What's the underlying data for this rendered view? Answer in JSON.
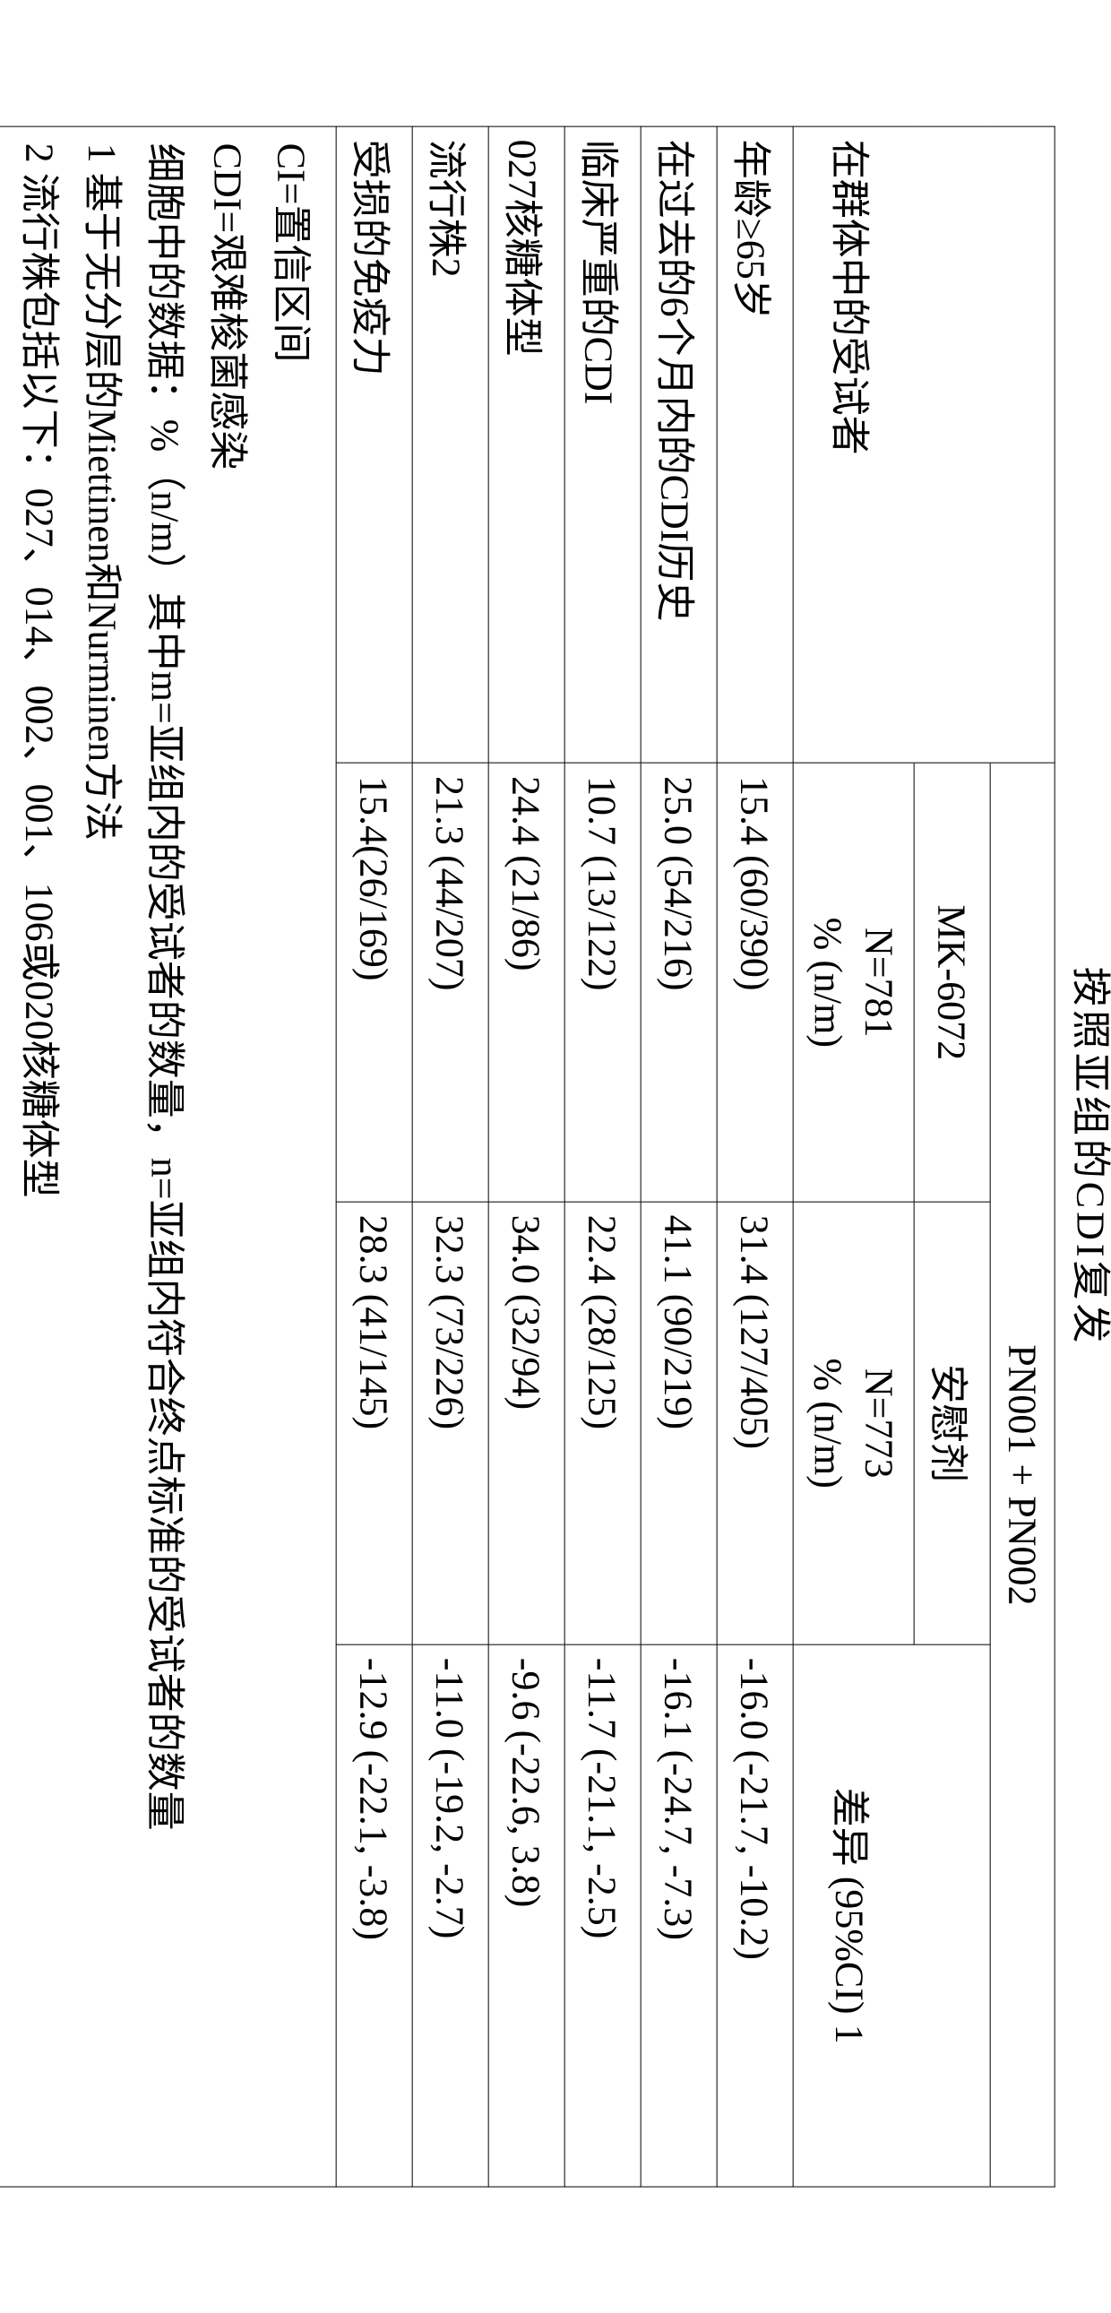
{
  "title": "按照亚组的CDI复发",
  "header": {
    "combined": "PN001 + PN002",
    "subjects_in": "在群体中的受试者",
    "arm1_name": "MK-6072",
    "arm1_n": "N=781",
    "arm1_fmt": "% (n/m)",
    "arm2_name": "安慰剂",
    "arm2_n": "N=773",
    "arm2_fmt": "% (n/m)",
    "diff_label": "差异 (95%CI) 1"
  },
  "rows": [
    {
      "label": "年龄≥65岁",
      "mk": "15.4 (60/390)",
      "pbo": "31.4 (127/405)",
      "diff": "-16.0 (-21.7, -10.2)"
    },
    {
      "label": "在过去的6个月内的CDI历史",
      "mk": "25.0 (54/216)",
      "pbo": "41.1 (90/219)",
      "diff": "-16.1 (-24.7, -7.3)"
    },
    {
      "label": "临床严重的CDI",
      "mk": "10.7 (13/122)",
      "pbo": "22.4 (28/125)",
      "diff": "-11.7 (-21.1, -2.5)"
    },
    {
      "label": "027核糖体型",
      "mk": "24.4 (21/86)",
      "pbo": "34.0 (32/94)",
      "diff": "-9.6 (-22.6, 3.8)"
    },
    {
      "label": "流行株2",
      "mk": "21.3 (44/207)",
      "pbo": "32.3 (73/226)",
      "diff": "-11.0 (-19.2, -2.7)"
    },
    {
      "label": "受损的免疫力",
      "mk": "15.4(26/169)",
      "pbo": "28.3 (41/145)",
      "diff": "-12.9 (-22.1, -3.8)"
    }
  ],
  "footnotes": {
    "f1": "CI=置信区间",
    "f2": "CDI=艰难梭菌感染",
    "f3": "细胞中的数据：%（n/m）其中m=亚组内的受试者的数量，n=亚组内符合终点标准的受试者的数量",
    "f4": "1 基于无分层的Miettinen和Nurminen方法",
    "f5": "2 流行株包括以下：027、014、002、001、106或020核糖体型"
  }
}
